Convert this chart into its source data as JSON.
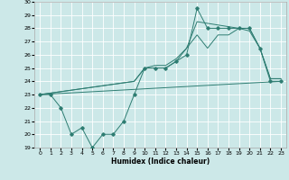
{
  "line1_x": [
    0,
    1,
    2,
    3,
    4,
    5,
    6,
    7,
    8,
    9,
    10,
    11,
    12,
    13,
    14,
    15,
    16,
    17,
    18,
    19,
    20,
    21,
    22,
    23
  ],
  "line1_y": [
    23,
    23,
    22,
    20,
    20.5,
    19,
    20,
    20,
    21,
    23,
    25,
    25,
    25,
    25.5,
    26,
    29.5,
    28,
    28,
    28,
    28,
    28,
    26.5,
    24,
    24
  ],
  "line2_x": [
    0,
    23
  ],
  "line2_y": [
    23,
    24
  ],
  "line3_x": [
    0,
    9,
    10,
    11,
    12,
    13,
    14,
    15,
    16,
    17,
    18,
    19,
    20,
    21,
    22,
    23
  ],
  "line3_y": [
    23,
    24,
    25,
    25,
    25,
    25.5,
    26.5,
    27.5,
    26.5,
    27.5,
    27.5,
    28,
    28,
    26.5,
    24.2,
    24.2
  ],
  "line4_x": [
    0,
    9,
    10,
    11,
    12,
    13,
    14,
    15,
    19,
    20,
    21,
    22,
    23
  ],
  "line4_y": [
    23,
    24,
    25,
    25.2,
    25.2,
    25.7,
    26.5,
    28.5,
    28.0,
    27.8,
    26.5,
    24.2,
    24.2
  ],
  "color": "#2e7d72",
  "bg_color": "#cce8e8",
  "grid_color": "#ffffff",
  "xlabel": "Humidex (Indice chaleur)",
  "xlim": [
    -0.5,
    23.5
  ],
  "ylim": [
    19,
    30
  ],
  "yticks": [
    19,
    20,
    21,
    22,
    23,
    24,
    25,
    26,
    27,
    28,
    29,
    30
  ],
  "xticks": [
    0,
    1,
    2,
    3,
    4,
    5,
    6,
    7,
    8,
    9,
    10,
    11,
    12,
    13,
    14,
    15,
    16,
    17,
    18,
    19,
    20,
    21,
    22,
    23
  ],
  "xlabel_fontsize": 5.5,
  "tick_fontsize": 4.5,
  "linewidth": 0.7,
  "markersize": 1.8
}
